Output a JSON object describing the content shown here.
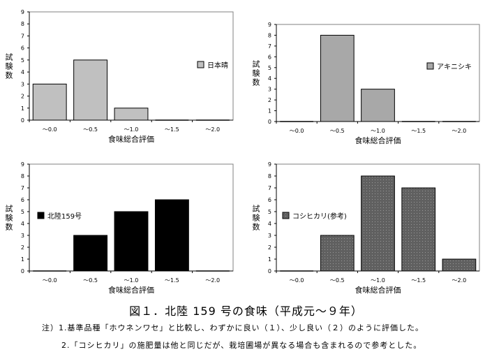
{
  "figure_caption": "図１．北陸 159 号の食味（平成元～９年）",
  "notes": [
    "注）1.基準品種「ホウネンワセ」と比較し、わずかに良い（１）、少し良い（２）のように評価した。",
    "2.「コシヒカリ」の施肥量は他と同じだが、栽培圃場が異なる場合も含まれるので参考とした。"
  ],
  "chart_data": [
    {
      "type": "bar",
      "categories": [
        "～0.0",
        "～0.5",
        "～1.0",
        "～1.5",
        "～2.0"
      ],
      "series": [
        {
          "name": "日本晴",
          "values": [
            3,
            5,
            1,
            0,
            0
          ]
        }
      ],
      "xlabel": "食味総合評価",
      "ylabel": "試験数",
      "ylim": [
        0,
        9
      ],
      "yticks": [
        "0",
        "1",
        "2",
        "3",
        "4",
        "5",
        "6",
        "7",
        "8",
        "9"
      ],
      "legend_position": "right",
      "colors": {
        "fill": "#c0c0c0",
        "stroke": "#000000"
      },
      "pattern": "solid"
    },
    {
      "type": "bar",
      "categories": [
        "～0.0",
        "～0.5",
        "～1.0",
        "～1.5",
        "～2.0"
      ],
      "series": [
        {
          "name": "アキニシキ",
          "values": [
            0,
            8,
            3,
            0,
            0
          ]
        }
      ],
      "xlabel": "食味総合評価",
      "ylabel": "試験数",
      "ylim": [
        0,
        9
      ],
      "yticks": [
        "0",
        "1",
        "2",
        "3",
        "4",
        "5",
        "6",
        "7",
        "8",
        "9"
      ],
      "legend_position": "right",
      "colors": {
        "fill": "#a8a8a8",
        "stroke": "#000000"
      },
      "pattern": "solid"
    },
    {
      "type": "bar",
      "categories": [
        "～0.0",
        "～0.5",
        "～1.0",
        "～1.5",
        "～2.0"
      ],
      "series": [
        {
          "name": "北陸159号",
          "values": [
            0,
            3,
            5,
            6,
            0
          ]
        }
      ],
      "xlabel": "食味総合評価",
      "ylabel": "試験数",
      "ylim": [
        0,
        9
      ],
      "yticks": [
        "0",
        "1",
        "2",
        "3",
        "4",
        "5",
        "6",
        "7",
        "8",
        "9"
      ],
      "legend_position": "left",
      "colors": {
        "fill": "#000000",
        "stroke": "#000000"
      },
      "pattern": "solid"
    },
    {
      "type": "bar",
      "categories": [
        "～0.0",
        "～0.5",
        "～1.0",
        "～1.5",
        "～2.0"
      ],
      "series": [
        {
          "name": "コシヒカリ(参考)",
          "values": [
            0,
            3,
            8,
            7,
            1
          ]
        }
      ],
      "xlabel": "食味総合評価",
      "ylabel": "試験数",
      "ylim": [
        0,
        9
      ],
      "yticks": [
        "0",
        "1",
        "2",
        "3",
        "4",
        "5",
        "6",
        "7",
        "8",
        "9"
      ],
      "legend_position": "left",
      "colors": {
        "fill": "#606060",
        "stroke": "#000000",
        "dots": "#9a9a9a"
      },
      "pattern": "dotted"
    }
  ]
}
